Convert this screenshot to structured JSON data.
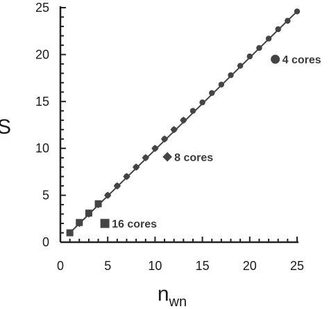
{
  "chart_data": {
    "type": "scatter",
    "title": "",
    "xlabel": "n",
    "xlabel_sub": "wn",
    "ylabel": "S",
    "xlim": [
      0,
      25
    ],
    "ylim": [
      0,
      25
    ],
    "xticks": [
      0,
      5,
      10,
      15,
      20,
      25
    ],
    "yticks": [
      0,
      5,
      10,
      15,
      20,
      25
    ],
    "grid": false,
    "reference_line": {
      "x": [
        1,
        25
      ],
      "y": [
        1,
        24.6
      ]
    },
    "colors": {
      "axis": "#222222",
      "marker": "#444444",
      "line": "#444444"
    },
    "series": [
      {
        "name": "4 cores",
        "marker": "circle",
        "x": [
          1,
          2,
          3,
          4,
          5,
          6,
          7,
          8,
          9,
          10,
          11,
          12,
          13,
          14,
          15,
          16,
          17,
          18,
          19,
          20,
          21,
          22,
          23,
          24,
          25
        ],
        "y": [
          1,
          2,
          3,
          4,
          5,
          6,
          7,
          8,
          9,
          10,
          11,
          12,
          13,
          14,
          14.9,
          15.9,
          16.8,
          17.8,
          18.8,
          19.8,
          20.7,
          21.7,
          22.7,
          23.6,
          24.6
        ]
      },
      {
        "name": "8 cores",
        "marker": "diamond",
        "x": [
          1,
          2,
          3,
          4,
          5,
          6,
          7,
          8,
          9,
          10,
          11,
          12,
          13
        ],
        "y": [
          1,
          2,
          3,
          4,
          5,
          6,
          7,
          8,
          9,
          10,
          11,
          12,
          13
        ]
      },
      {
        "name": "16 cores",
        "marker": "square",
        "x": [
          1,
          2,
          3,
          4
        ],
        "y": [
          1,
          2.1,
          3.1,
          4.1
        ]
      }
    ],
    "annotations": [
      {
        "text": "4 cores",
        "marker": "circle",
        "x": 22.7,
        "y": 19.5
      },
      {
        "text": "8 cores",
        "marker": "diamond",
        "x": 11.3,
        "y": 9.1
      },
      {
        "text": "16 cores",
        "marker": "square",
        "x": 4.7,
        "y": 2.0
      }
    ]
  }
}
